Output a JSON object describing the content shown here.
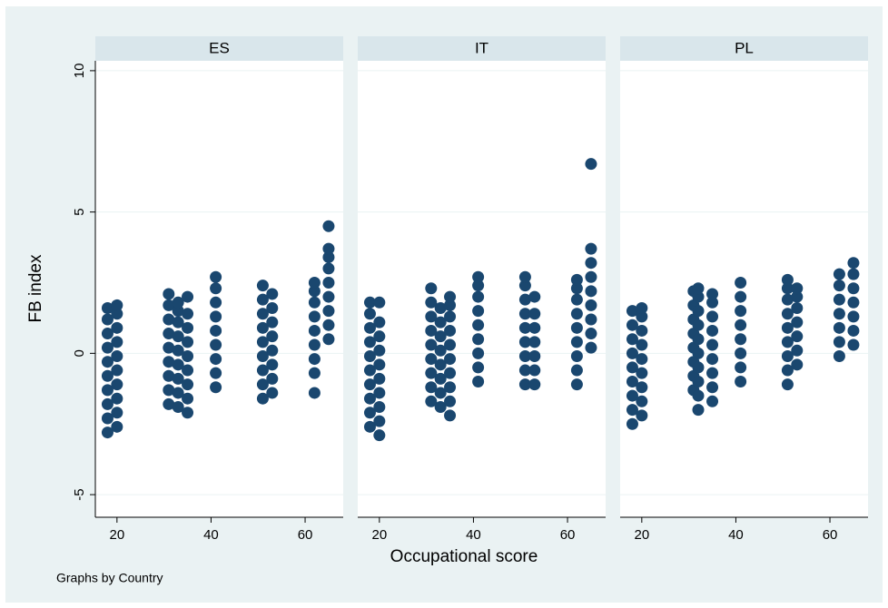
{
  "chart_data": {
    "type": "scatter",
    "y_label": "FB index",
    "x_label": "Occupational score",
    "note": "Graphs by Country",
    "ylim": [
      -5.8,
      10.35
    ],
    "yticks": [
      -5,
      0,
      5,
      10
    ],
    "xlim": [
      15.4,
      68.1
    ],
    "xticks": [
      20,
      40,
      60
    ],
    "color": "#1a476f",
    "grid": true,
    "panels": [
      {
        "title": "ES",
        "x": [
          18,
          18,
          18,
          18,
          18,
          18,
          18,
          18,
          18,
          18,
          20,
          20,
          20,
          20,
          20,
          20,
          20,
          20,
          20,
          20,
          31,
          31,
          31,
          31,
          31,
          31,
          31,
          31,
          31,
          33,
          33,
          33,
          33,
          33,
          33,
          33,
          33,
          33,
          35,
          35,
          35,
          35,
          35,
          35,
          35,
          35,
          35,
          41,
          41,
          41,
          41,
          41,
          41,
          41,
          41,
          41,
          51,
          51,
          51,
          51,
          51,
          51,
          51,
          51,
          51,
          53,
          53,
          53,
          53,
          53,
          53,
          53,
          53,
          62,
          62,
          62,
          62,
          62,
          62,
          62,
          62,
          62,
          65,
          65,
          65,
          65,
          65,
          65,
          65,
          65,
          65
        ],
        "y": [
          -2.8,
          -2.3,
          -1.8,
          -1.3,
          -0.8,
          -0.3,
          0.2,
          0.7,
          1.2,
          1.6,
          -2.6,
          -2.1,
          -1.6,
          -1.1,
          -0.6,
          -0.1,
          0.4,
          0.9,
          1.4,
          1.7,
          -1.8,
          -1.3,
          -0.8,
          -0.3,
          0.2,
          0.7,
          1.2,
          1.7,
          2.1,
          -1.9,
          -1.4,
          -0.9,
          -0.4,
          0.1,
          0.6,
          1.1,
          1.5,
          1.8,
          -2.1,
          -1.6,
          -1.1,
          -0.6,
          -0.1,
          0.4,
          0.9,
          1.4,
          2.0,
          -1.2,
          -0.7,
          -0.2,
          0.3,
          0.8,
          1.3,
          1.8,
          2.3,
          2.7,
          -1.6,
          -1.1,
          -0.6,
          -0.1,
          0.4,
          0.9,
          1.4,
          1.9,
          2.4,
          -1.4,
          -0.9,
          -0.4,
          0.1,
          0.6,
          1.1,
          1.6,
          2.1,
          -1.4,
          -0.7,
          -0.2,
          0.3,
          0.8,
          1.3,
          1.8,
          2.2,
          2.5,
          0.5,
          1.0,
          1.5,
          2.0,
          2.5,
          3.0,
          3.4,
          3.7,
          4.5
        ]
      },
      {
        "title": "IT",
        "x": [
          18,
          18,
          18,
          18,
          18,
          18,
          18,
          18,
          18,
          18,
          20,
          20,
          20,
          20,
          20,
          20,
          20,
          20,
          20,
          20,
          31,
          31,
          31,
          31,
          31,
          31,
          31,
          31,
          31,
          33,
          33,
          33,
          33,
          33,
          33,
          33,
          33,
          35,
          35,
          35,
          35,
          35,
          35,
          35,
          35,
          35,
          35,
          41,
          41,
          41,
          41,
          41,
          41,
          41,
          41,
          41,
          51,
          51,
          51,
          51,
          51,
          51,
          51,
          51,
          51,
          53,
          53,
          53,
          53,
          53,
          53,
          53,
          62,
          62,
          62,
          62,
          62,
          62,
          62,
          62,
          62,
          65,
          65,
          65,
          65,
          65,
          65,
          65,
          65,
          65
        ],
        "y": [
          -2.6,
          -2.1,
          -1.6,
          -1.1,
          -0.6,
          -0.1,
          0.4,
          0.9,
          1.4,
          1.8,
          -2.9,
          -2.4,
          -1.9,
          -1.4,
          -0.9,
          -0.4,
          0.1,
          0.6,
          1.1,
          1.8,
          -1.7,
          -1.2,
          -0.7,
          -0.2,
          0.3,
          0.8,
          1.3,
          1.8,
          2.3,
          -1.9,
          -1.4,
          -0.9,
          -0.4,
          0.1,
          0.6,
          1.1,
          1.6,
          -2.2,
          -1.7,
          -1.2,
          -0.7,
          -0.2,
          0.3,
          0.8,
          1.3,
          1.7,
          2.0,
          -1.0,
          -0.5,
          0,
          0.5,
          1.0,
          1.5,
          2.0,
          2.4,
          2.7,
          -1.1,
          -0.6,
          -0.1,
          0.4,
          0.9,
          1.4,
          1.9,
          2.4,
          2.7,
          -1.1,
          -0.6,
          -0.1,
          0.4,
          0.9,
          1.4,
          2.0,
          -1.1,
          -0.6,
          -0.1,
          0.4,
          0.9,
          1.4,
          1.9,
          2.3,
          2.6,
          0.2,
          0.7,
          1.2,
          1.7,
          2.2,
          2.7,
          3.2,
          3.7,
          6.7
        ]
      },
      {
        "title": "PL",
        "x": [
          18,
          18,
          18,
          18,
          18,
          18,
          18,
          18,
          18,
          20,
          20,
          20,
          20,
          20,
          20,
          20,
          20,
          20,
          31,
          31,
          31,
          31,
          31,
          31,
          31,
          31,
          32,
          32,
          32,
          32,
          32,
          32,
          32,
          32,
          32,
          32,
          35,
          35,
          35,
          35,
          35,
          35,
          35,
          35,
          35,
          41,
          41,
          41,
          41,
          41,
          41,
          41,
          41,
          51,
          51,
          51,
          51,
          51,
          51,
          51,
          51,
          51,
          53,
          53,
          53,
          53,
          53,
          53,
          53,
          62,
          62,
          62,
          62,
          62,
          62,
          62,
          65,
          65,
          65,
          65,
          65,
          65,
          65
        ],
        "y": [
          -2.5,
          -2.0,
          -1.5,
          -1.0,
          -0.5,
          0,
          0.5,
          1.0,
          1.5,
          -2.2,
          -1.7,
          -1.2,
          -0.7,
          -0.2,
          0.3,
          0.8,
          1.3,
          1.6,
          -1.3,
          -0.8,
          -0.3,
          0.2,
          0.7,
          1.2,
          1.7,
          2.2,
          -2.0,
          -1.5,
          -1.0,
          -0.5,
          0,
          0.5,
          1.0,
          1.5,
          2.0,
          2.3,
          -1.7,
          -1.2,
          -0.7,
          -0.2,
          0.3,
          0.8,
          1.3,
          1.8,
          2.1,
          -1.0,
          -0.5,
          0,
          0.5,
          1.0,
          1.5,
          2.0,
          2.5,
          -1.1,
          -0.6,
          -0.1,
          0.4,
          0.9,
          1.4,
          1.9,
          2.3,
          2.6,
          -0.4,
          0.1,
          0.6,
          1.1,
          1.6,
          2.0,
          2.3,
          -0.1,
          0.4,
          0.9,
          1.4,
          1.9,
          2.4,
          2.8,
          0.3,
          0.8,
          1.3,
          1.8,
          2.3,
          2.8,
          3.2
        ]
      }
    ]
  }
}
